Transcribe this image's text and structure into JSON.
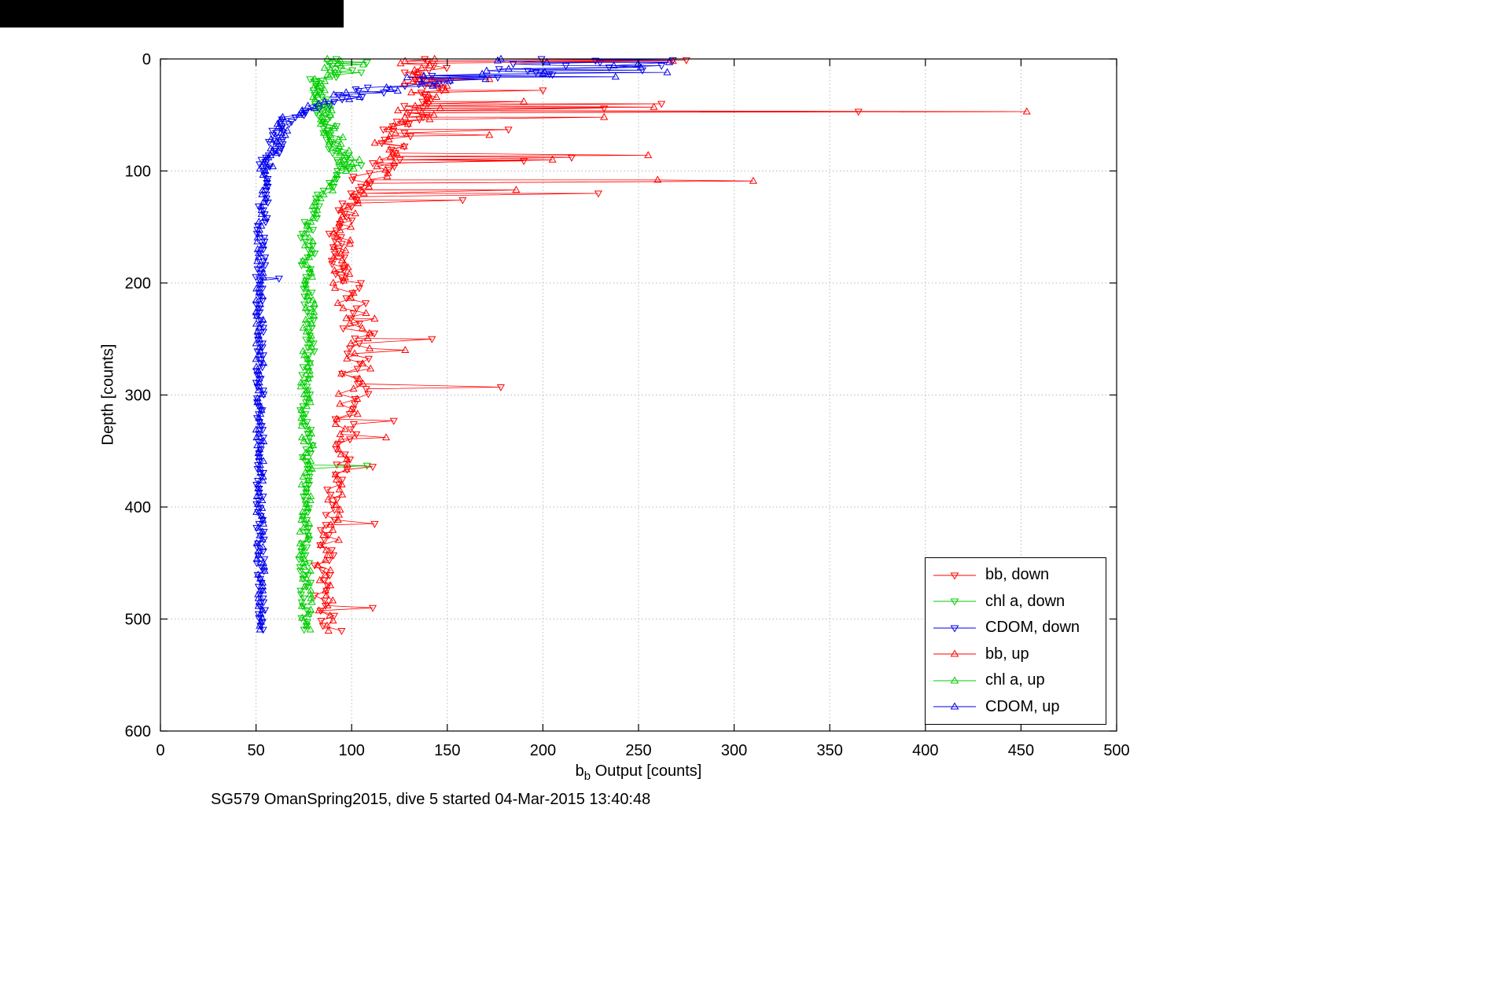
{
  "window": {
    "artifact_bar_color": "#000000"
  },
  "chart_data": {
    "type": "scatter",
    "title": "",
    "xlabel": "b_b Output [counts]",
    "xlabel_parts": {
      "base": "b",
      "sub": "b",
      "rest": " Output [counts]"
    },
    "ylabel": "Depth [counts]",
    "caption": "SG579 OmanSpring2015, dive 5 started 04-Mar-2015 13:40:48",
    "xlim": [
      0,
      500
    ],
    "ylim": [
      0,
      600
    ],
    "y_reversed": true,
    "xticks": [
      0,
      50,
      100,
      150,
      200,
      250,
      300,
      350,
      400,
      450,
      500
    ],
    "yticks": [
      0,
      100,
      200,
      300,
      400,
      500,
      600
    ],
    "grid": true,
    "grid_color": "#b8b8b8",
    "axes_color": "#000000",
    "legend": {
      "position": "bottom-right",
      "entries": [
        "bb, down",
        "chl a, down",
        "CDOM, down",
        "bb, up",
        "chl a, up",
        "CDOM, up"
      ]
    },
    "series": [
      {
        "id": "bb-down",
        "name": "bb, down",
        "color": "#ff0000",
        "marker": "v",
        "seed": 11,
        "steps": [
          [
            0,
            60,
            2
          ],
          [
            60,
            200,
            3
          ],
          [
            200,
            512,
            4.5
          ]
        ],
        "anchors": [
          [
            0,
            138
          ],
          [
            8,
            142
          ],
          [
            16,
            132
          ],
          [
            24,
            140
          ],
          [
            32,
            146
          ],
          [
            40,
            138
          ],
          [
            48,
            132
          ],
          [
            56,
            128
          ],
          [
            64,
            124
          ],
          [
            72,
            121
          ],
          [
            80,
            124
          ],
          [
            88,
            120
          ],
          [
            96,
            116
          ],
          [
            104,
            110
          ],
          [
            112,
            106
          ],
          [
            120,
            102
          ],
          [
            130,
            99
          ],
          [
            145,
            95
          ],
          [
            160,
            92
          ],
          [
            180,
            93
          ],
          [
            200,
            97
          ],
          [
            215,
            99
          ],
          [
            230,
            103
          ],
          [
            245,
            105
          ],
          [
            260,
            106
          ],
          [
            275,
            103
          ],
          [
            290,
            101
          ],
          [
            305,
            100
          ],
          [
            320,
            99
          ],
          [
            340,
            97
          ],
          [
            360,
            94
          ],
          [
            380,
            92
          ],
          [
            400,
            90
          ],
          [
            430,
            87
          ],
          [
            460,
            85
          ],
          [
            485,
            86
          ],
          [
            512,
            90
          ]
        ],
        "jitter": [
          [
            0,
            30,
            11
          ],
          [
            30,
            60,
            12
          ],
          [
            60,
            110,
            9
          ],
          [
            110,
            200,
            5
          ],
          [
            200,
            330,
            9
          ],
          [
            330,
            512,
            5
          ]
        ],
        "outliers": [
          [
            1,
            275
          ],
          [
            28,
            200
          ],
          [
            40,
            262
          ],
          [
            44,
            232
          ],
          [
            47,
            365
          ],
          [
            63,
            182
          ],
          [
            88,
            215
          ],
          [
            91,
            190
          ],
          [
            120,
            229
          ],
          [
            126,
            158
          ],
          [
            250,
            142
          ],
          [
            293,
            178
          ],
          [
            323,
            122
          ],
          [
            364,
            111
          ],
          [
            415,
            112
          ],
          [
            490,
            111
          ]
        ]
      },
      {
        "id": "chla-down",
        "name": "chl a, down",
        "color": "#00cc00",
        "marker": "v",
        "seed": 22,
        "steps": [
          [
            0,
            100,
            2
          ],
          [
            100,
            512,
            3.5
          ]
        ],
        "anchors": [
          [
            0,
            90
          ],
          [
            8,
            96
          ],
          [
            18,
            86
          ],
          [
            30,
            83
          ],
          [
            45,
            86
          ],
          [
            60,
            89
          ],
          [
            75,
            91
          ],
          [
            90,
            97
          ],
          [
            100,
            95
          ],
          [
            110,
            89
          ],
          [
            125,
            83
          ],
          [
            140,
            79
          ],
          [
            160,
            77
          ],
          [
            180,
            78
          ],
          [
            200,
            77
          ],
          [
            240,
            78
          ],
          [
            280,
            77
          ],
          [
            320,
            76
          ],
          [
            360,
            77
          ],
          [
            400,
            76
          ],
          [
            440,
            75
          ],
          [
            480,
            76
          ],
          [
            512,
            77
          ]
        ],
        "jitter": [
          [
            0,
            20,
            8
          ],
          [
            20,
            100,
            5
          ],
          [
            100,
            200,
            4
          ],
          [
            200,
            512,
            3
          ]
        ],
        "outliers": [
          [
            3,
            108
          ],
          [
            12,
            105
          ],
          [
            95,
            105
          ],
          [
            363,
            108
          ]
        ]
      },
      {
        "id": "cdom-down",
        "name": "CDOM, down",
        "color": "#0000ee",
        "marker": "v",
        "seed": 33,
        "steps": [
          [
            0,
            30,
            1.5
          ],
          [
            30,
            100,
            2
          ],
          [
            100,
            512,
            3.5
          ]
        ],
        "anchors": [
          [
            0,
            195
          ],
          [
            4,
            228
          ],
          [
            8,
            205
          ],
          [
            12,
            172
          ],
          [
            16,
            152
          ],
          [
            20,
            140
          ],
          [
            25,
            122
          ],
          [
            30,
            106
          ],
          [
            35,
            96
          ],
          [
            40,
            86
          ],
          [
            45,
            79
          ],
          [
            50,
            69
          ],
          [
            55,
            65
          ],
          [
            60,
            63
          ],
          [
            70,
            61
          ],
          [
            80,
            59
          ],
          [
            90,
            57
          ],
          [
            100,
            55
          ],
          [
            120,
            54
          ],
          [
            150,
            53
          ],
          [
            200,
            52
          ],
          [
            300,
            52
          ],
          [
            400,
            52
          ],
          [
            512,
            53
          ]
        ],
        "jitter": [
          [
            0,
            18,
            42
          ],
          [
            18,
            35,
            16
          ],
          [
            35,
            55,
            8
          ],
          [
            55,
            100,
            5
          ],
          [
            100,
            200,
            2.5
          ],
          [
            200,
            512,
            2
          ]
        ],
        "outliers": [
          [
            1,
            268
          ],
          [
            6,
            262
          ],
          [
            10,
            252
          ],
          [
            14,
            205
          ],
          [
            196,
            62
          ]
        ]
      },
      {
        "id": "bb-up",
        "name": "bb, up",
        "color": "#ff0000",
        "marker": "^",
        "seed": 44,
        "steps": [
          [
            0,
            60,
            2
          ],
          [
            60,
            200,
            3
          ],
          [
            200,
            512,
            4.5
          ]
        ],
        "anchors": [
          [
            0,
            136
          ],
          [
            10,
            133
          ],
          [
            20,
            137
          ],
          [
            30,
            143
          ],
          [
            40,
            139
          ],
          [
            50,
            131
          ],
          [
            60,
            126
          ],
          [
            75,
            121
          ],
          [
            90,
            123
          ],
          [
            100,
            113
          ],
          [
            115,
            106
          ],
          [
            130,
            100
          ],
          [
            150,
            96
          ],
          [
            175,
            93
          ],
          [
            200,
            96
          ],
          [
            230,
            102
          ],
          [
            260,
            105
          ],
          [
            290,
            101
          ],
          [
            320,
            98
          ],
          [
            350,
            95
          ],
          [
            380,
            93
          ],
          [
            420,
            89
          ],
          [
            460,
            86
          ],
          [
            512,
            88
          ]
        ],
        "jitter": [
          [
            0,
            30,
            11
          ],
          [
            30,
            60,
            12
          ],
          [
            60,
            110,
            9
          ],
          [
            110,
            200,
            5
          ],
          [
            200,
            330,
            8
          ],
          [
            330,
            512,
            5
          ]
        ],
        "outliers": [
          [
            2,
            268
          ],
          [
            18,
            172
          ],
          [
            38,
            190
          ],
          [
            43,
            258
          ],
          [
            47,
            453
          ],
          [
            52,
            232
          ],
          [
            68,
            172
          ],
          [
            86,
            255
          ],
          [
            90,
            205
          ],
          [
            108,
            260
          ],
          [
            109,
            310
          ],
          [
            117,
            186
          ],
          [
            232,
            112
          ],
          [
            260,
            128
          ],
          [
            338,
            118
          ]
        ]
      },
      {
        "id": "chla-up",
        "name": "chl a, up",
        "color": "#00cc00",
        "marker": "^",
        "seed": 55,
        "steps": [
          [
            0,
            100,
            2
          ],
          [
            100,
            512,
            3.5
          ]
        ],
        "anchors": [
          [
            0,
            88
          ],
          [
            10,
            93
          ],
          [
            20,
            85
          ],
          [
            35,
            84
          ],
          [
            50,
            87
          ],
          [
            65,
            90
          ],
          [
            80,
            93
          ],
          [
            95,
            98
          ],
          [
            105,
            93
          ],
          [
            120,
            86
          ],
          [
            135,
            81
          ],
          [
            155,
            78
          ],
          [
            180,
            77
          ],
          [
            220,
            78
          ],
          [
            260,
            77
          ],
          [
            300,
            76
          ],
          [
            340,
            77
          ],
          [
            380,
            76
          ],
          [
            420,
            75
          ],
          [
            460,
            76
          ],
          [
            512,
            77
          ]
        ],
        "jitter": [
          [
            0,
            20,
            7
          ],
          [
            20,
            100,
            5
          ],
          [
            100,
            512,
            3
          ]
        ],
        "outliers": [
          [
            5,
            106
          ],
          [
            90,
            104
          ]
        ]
      },
      {
        "id": "cdom-up",
        "name": "CDOM, up",
        "color": "#0000ee",
        "marker": "^",
        "seed": 66,
        "steps": [
          [
            0,
            30,
            1.5
          ],
          [
            30,
            100,
            2
          ],
          [
            100,
            512,
            3.5
          ]
        ],
        "anchors": [
          [
            0,
            205
          ],
          [
            5,
            235
          ],
          [
            10,
            212
          ],
          [
            14,
            182
          ],
          [
            18,
            156
          ],
          [
            22,
            136
          ],
          [
            27,
            116
          ],
          [
            32,
            101
          ],
          [
            38,
            91
          ],
          [
            44,
            81
          ],
          [
            50,
            71
          ],
          [
            56,
            65
          ],
          [
            65,
            62
          ],
          [
            75,
            60
          ],
          [
            85,
            58
          ],
          [
            95,
            56
          ],
          [
            110,
            54
          ],
          [
            140,
            53
          ],
          [
            200,
            52
          ],
          [
            300,
            52
          ],
          [
            400,
            52
          ],
          [
            512,
            53
          ]
        ],
        "jitter": [
          [
            0,
            18,
            38
          ],
          [
            18,
            35,
            15
          ],
          [
            35,
            55,
            8
          ],
          [
            55,
            100,
            4
          ],
          [
            100,
            512,
            2
          ]
        ],
        "outliers": [
          [
            3,
            266
          ],
          [
            12,
            265
          ],
          [
            13,
            200
          ],
          [
            16,
            238
          ]
        ]
      }
    ]
  }
}
